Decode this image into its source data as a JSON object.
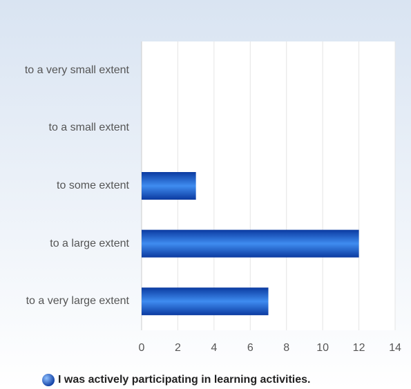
{
  "chart_data": {
    "type": "hbar",
    "categories": [
      "to a very small extent",
      "to a small extent",
      "to some extent",
      "to a large extent",
      "to a very large extent"
    ],
    "series": [
      {
        "name": "I was actively participating in learning activities.",
        "color": "#2a6fd6",
        "values": [
          0,
          0,
          3,
          12,
          7
        ]
      }
    ],
    "xlim": [
      0,
      14
    ],
    "xticks": [
      0,
      2,
      4,
      6,
      8,
      10,
      12,
      14
    ],
    "grid": true,
    "legend": "bottom"
  }
}
